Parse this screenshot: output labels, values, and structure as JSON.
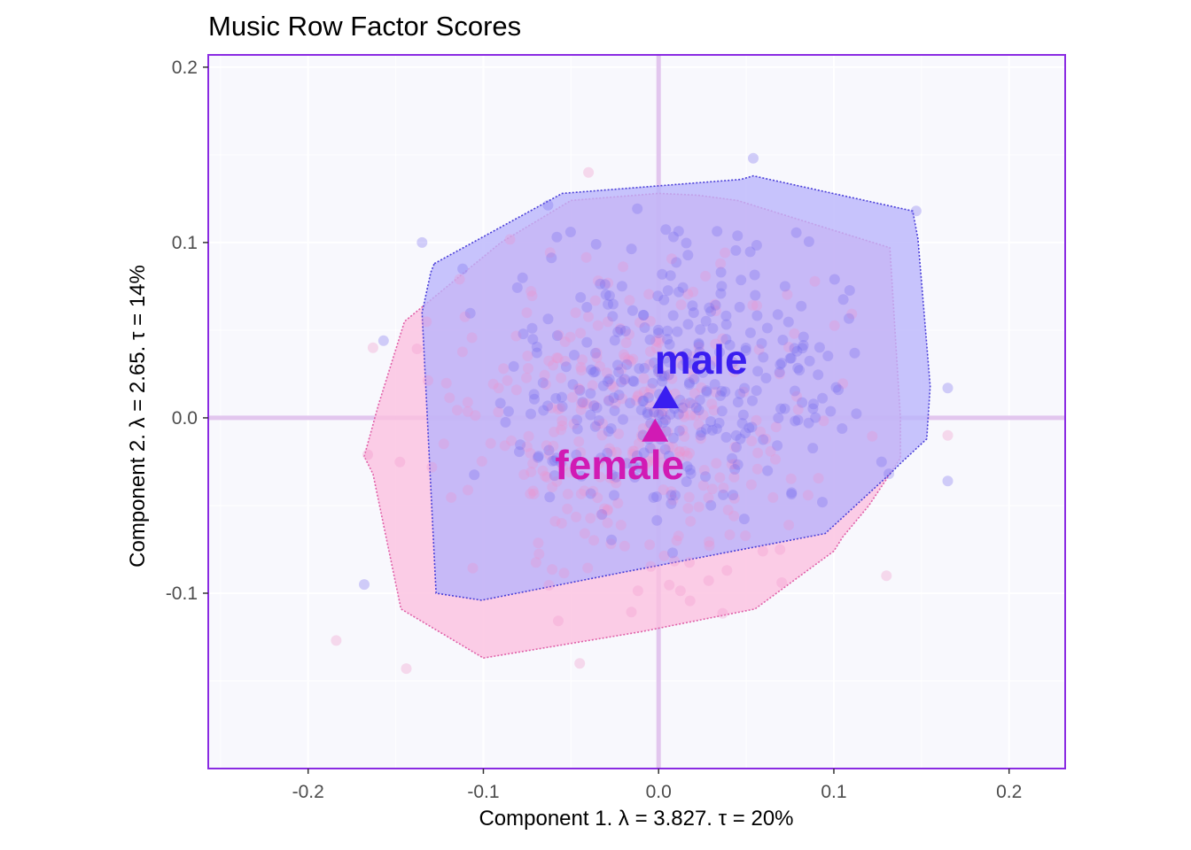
{
  "chart_data": {
    "type": "scatter",
    "title": "Music Row Factor Scores",
    "xlabel": "Component 1.   λ = 3.827.  τ = 20%",
    "ylabel": "Component 2.   λ = 2.65.  τ = 14%",
    "xlim": [
      -0.257,
      0.232
    ],
    "ylim": [
      -0.2,
      0.207
    ],
    "xticks": [
      -0.2,
      -0.1,
      0.0,
      0.1,
      0.2
    ],
    "xtick_labels": [
      "-0.2",
      "-0.1",
      "0.0",
      "0.1",
      "0.2"
    ],
    "yticks": [
      -0.1,
      0.0,
      0.1,
      0.2
    ],
    "ytick_labels": [
      "-0.1",
      "0.0",
      "0.1",
      "0.2"
    ],
    "grid": true,
    "background": "#f8f8fd",
    "panel_border": "#8a2be2",
    "origin_lines_color": "#e2c6ee",
    "series": [
      {
        "name": "male",
        "color": "#3a1ef0",
        "point_color": "#6f63ee",
        "hull_fill": "#b8b4fb",
        "hull_stroke": "#4a3fd8",
        "mean": [
          0.004,
          0.012
        ],
        "hull": [
          [
            -0.128,
            0.088
          ],
          [
            -0.055,
            0.128
          ],
          [
            0.047,
            0.136
          ],
          [
            0.054,
            0.138
          ],
          [
            0.145,
            0.118
          ],
          [
            0.148,
            0.102
          ],
          [
            0.155,
            0.018
          ],
          [
            0.153,
            -0.012
          ],
          [
            0.138,
            -0.026
          ],
          [
            0.132,
            -0.032
          ],
          [
            0.095,
            -0.066
          ],
          [
            -0.02,
            -0.088
          ],
          [
            -0.101,
            -0.104
          ],
          [
            -0.127,
            -0.1
          ],
          [
            -0.135,
            0.06
          ],
          [
            -0.13,
            0.083
          ]
        ],
        "outliers": [
          [
            0.054,
            0.148
          ],
          [
            0.147,
            0.118
          ],
          [
            0.165,
            0.017
          ],
          [
            0.165,
            -0.036
          ],
          [
            -0.135,
            0.1
          ],
          [
            -0.168,
            -0.095
          ],
          [
            -0.157,
            0.044
          ],
          [
            0.02,
            0.06
          ]
        ]
      },
      {
        "name": "female",
        "color": "#d11ab4",
        "point_color": "#f08fc8",
        "hull_fill": "#fbbfdf",
        "hull_stroke": "#e060a8",
        "mean": [
          -0.002,
          -0.007
        ],
        "hull": [
          [
            -0.05,
            0.124
          ],
          [
            0.0,
            0.128
          ],
          [
            0.022,
            0.127
          ],
          [
            0.045,
            0.124
          ],
          [
            0.132,
            0.097
          ],
          [
            0.138,
            0.0
          ],
          [
            0.138,
            -0.023
          ],
          [
            0.12,
            -0.05
          ],
          [
            0.105,
            -0.068
          ],
          [
            0.1,
            -0.076
          ],
          [
            0.055,
            -0.109
          ],
          [
            -0.01,
            -0.122
          ],
          [
            -0.1,
            -0.137
          ],
          [
            -0.147,
            -0.109
          ],
          [
            -0.163,
            -0.032
          ],
          [
            -0.168,
            -0.022
          ],
          [
            -0.16,
            0.007
          ],
          [
            -0.145,
            0.055
          ],
          [
            -0.09,
            0.1
          ]
        ],
        "outliers": [
          [
            -0.184,
            -0.127
          ],
          [
            -0.144,
            -0.143
          ],
          [
            -0.163,
            0.04
          ],
          [
            -0.045,
            -0.14
          ],
          [
            0.13,
            -0.09
          ],
          [
            -0.04,
            0.14
          ],
          [
            0.165,
            -0.01
          ],
          [
            -0.166,
            -0.021
          ]
        ]
      }
    ]
  }
}
